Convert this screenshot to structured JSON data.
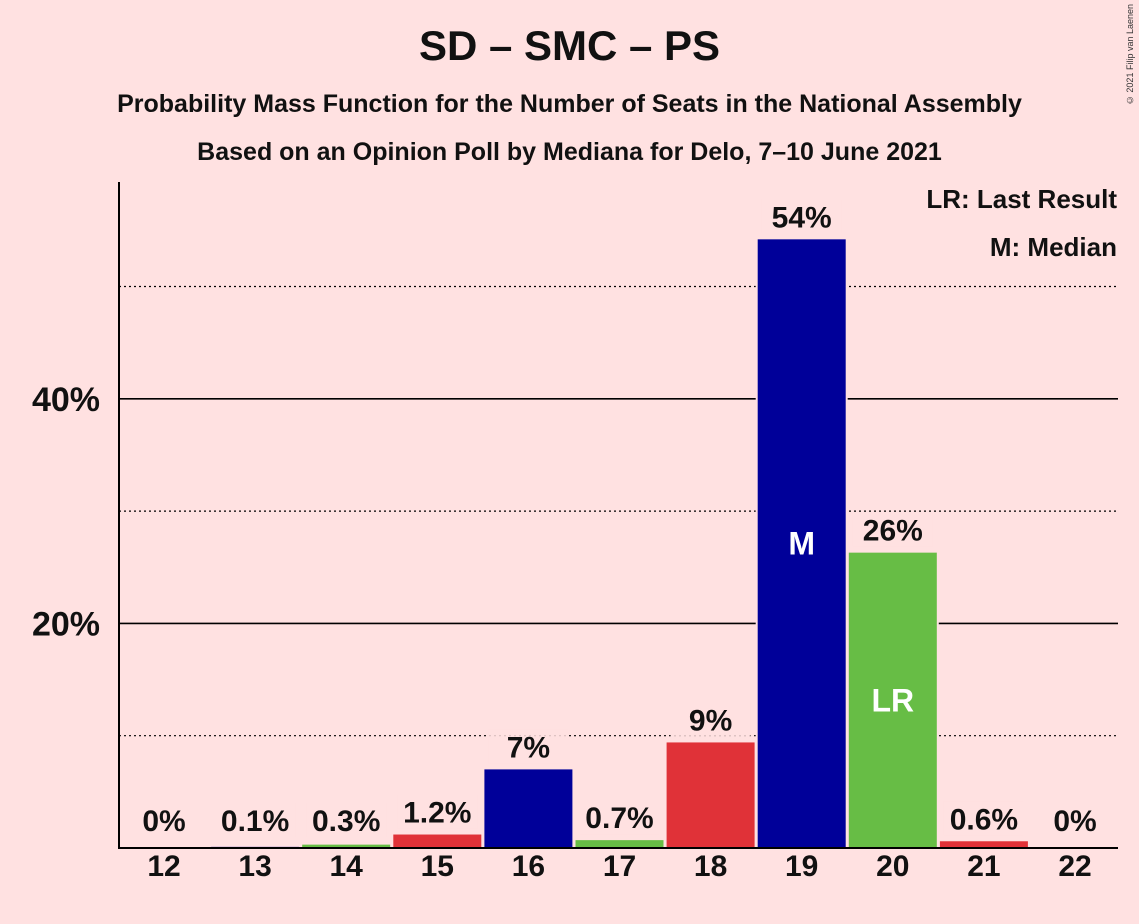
{
  "title": "SD – SMC – PS",
  "subtitle1": "Probability Mass Function for the Number of Seats in the National Assembly",
  "subtitle2": "Based on an Opinion Poll by Mediana for Delo, 7–10 June 2021",
  "copyright": "© 2021 Filip van Laenen",
  "legend": {
    "last_result": "LR: Last Result",
    "median": "M: Median"
  },
  "colors": {
    "background": "#FFE1E1",
    "blue": "#000099",
    "red": "#E03238",
    "green": "#67BD45"
  },
  "chart_data": {
    "type": "bar",
    "categories": [
      "12",
      "13",
      "14",
      "15",
      "16",
      "17",
      "18",
      "19",
      "20",
      "21",
      "22"
    ],
    "values": [
      0,
      0.1,
      0.3,
      1.2,
      7,
      0.7,
      9.4,
      54.2,
      26.3,
      0.6,
      0
    ],
    "labels": [
      "0%",
      "0.1%",
      "0.3%",
      "1.2%",
      "7%",
      "0.7%",
      "9%",
      "54%",
      "26%",
      "0.6%",
      "0%"
    ],
    "bar_colors": [
      "blue",
      "blue",
      "green",
      "red",
      "blue",
      "green",
      "red",
      "blue",
      "green",
      "red",
      "blue"
    ],
    "markers": {
      "19": "M",
      "20": "LR"
    },
    "yticks": [
      {
        "value": 20,
        "label": "20%"
      },
      {
        "value": 40,
        "label": "40%"
      }
    ],
    "minor_gridlines": [
      10,
      30,
      50
    ],
    "ylim": [
      0,
      59
    ],
    "grid": true,
    "legend_position": "top-right"
  }
}
